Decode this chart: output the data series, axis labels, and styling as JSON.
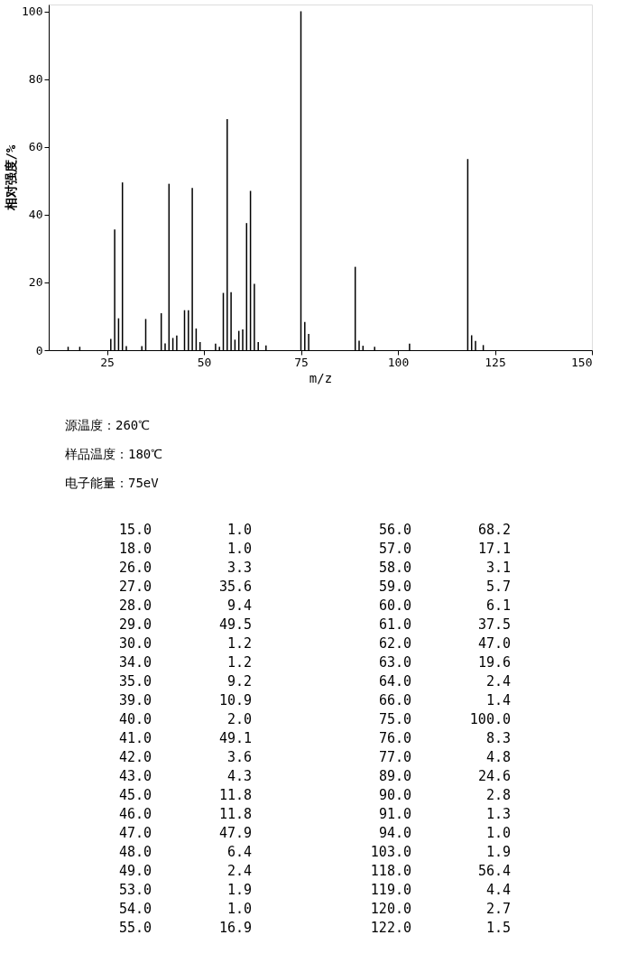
{
  "chart_data": {
    "type": "bar",
    "xlabel": "m/z",
    "ylabel": "相对强度/%",
    "x": [
      15,
      18,
      26,
      27,
      28,
      29,
      30,
      34,
      35,
      39,
      40,
      41,
      42,
      43,
      45,
      46,
      47,
      48,
      49,
      53,
      54,
      55,
      56,
      57,
      58,
      59,
      60,
      61,
      62,
      63,
      64,
      66,
      75,
      76,
      77,
      89,
      90,
      91,
      94,
      103,
      118,
      119,
      120,
      122
    ],
    "values": [
      1.0,
      1.0,
      3.3,
      35.6,
      9.4,
      49.5,
      1.2,
      1.2,
      9.2,
      10.9,
      2.0,
      49.1,
      3.6,
      4.3,
      11.8,
      11.8,
      47.9,
      6.4,
      2.4,
      1.9,
      1.0,
      16.9,
      68.2,
      17.1,
      3.1,
      5.7,
      6.1,
      37.5,
      47.0,
      19.6,
      2.4,
      1.4,
      100.0,
      8.3,
      4.8,
      24.6,
      2.8,
      1.3,
      1.0,
      1.9,
      56.4,
      4.4,
      2.7,
      1.5
    ],
    "color": "#000000",
    "xlim": [
      10,
      150
    ],
    "xticks": [
      25,
      50,
      75,
      100,
      125,
      150
    ],
    "ylim": [
      0,
      102
    ],
    "yticks": [
      0,
      20,
      40,
      60,
      80,
      100
    ],
    "grid": false,
    "annotations": [
      "源温度：260℃",
      "样品温度：180℃",
      "电子能量：75eV",
      "15.0",
      "1.0",
      "56.0",
      "68.2",
      "18.0",
      "1.0",
      "57.0",
      "17.1",
      "26.0",
      "3.3",
      "58.0",
      "3.1",
      "27.0",
      "35.6",
      "59.0",
      "5.7",
      "28.0",
      "9.4",
      "60.0",
      "6.1",
      "29.0",
      "49.5",
      "61.0",
      "37.5",
      "30.0",
      "1.2",
      "62.0",
      "47.0",
      "34.0",
      "1.2",
      "63.0",
      "19.6",
      "35.0",
      "9.2",
      "64.0",
      "2.4",
      "39.0",
      "10.9",
      "66.0",
      "1.4",
      "40.0",
      "2.0",
      "75.0",
      "100.0",
      "41.0",
      "49.1",
      "76.0",
      "8.3",
      "42.0",
      "3.6",
      "77.0",
      "4.8",
      "43.0",
      "4.3",
      "89.0",
      "24.6",
      "45.0",
      "11.8",
      "90.0",
      "2.8",
      "46.0",
      "11.8",
      "91.0",
      "1.3",
      "47.0",
      "47.9",
      "94.0",
      "1.0",
      "48.0",
      "6.4",
      "103.0",
      "1.9",
      "49.0",
      "2.4",
      "118.0",
      "56.4",
      "53.0",
      "1.9",
      "119.0",
      "4.4",
      "54.0",
      "1.0",
      "120.0",
      "2.7",
      "55.0",
      "16.9",
      "122.0",
      "1.5"
    ]
  }
}
